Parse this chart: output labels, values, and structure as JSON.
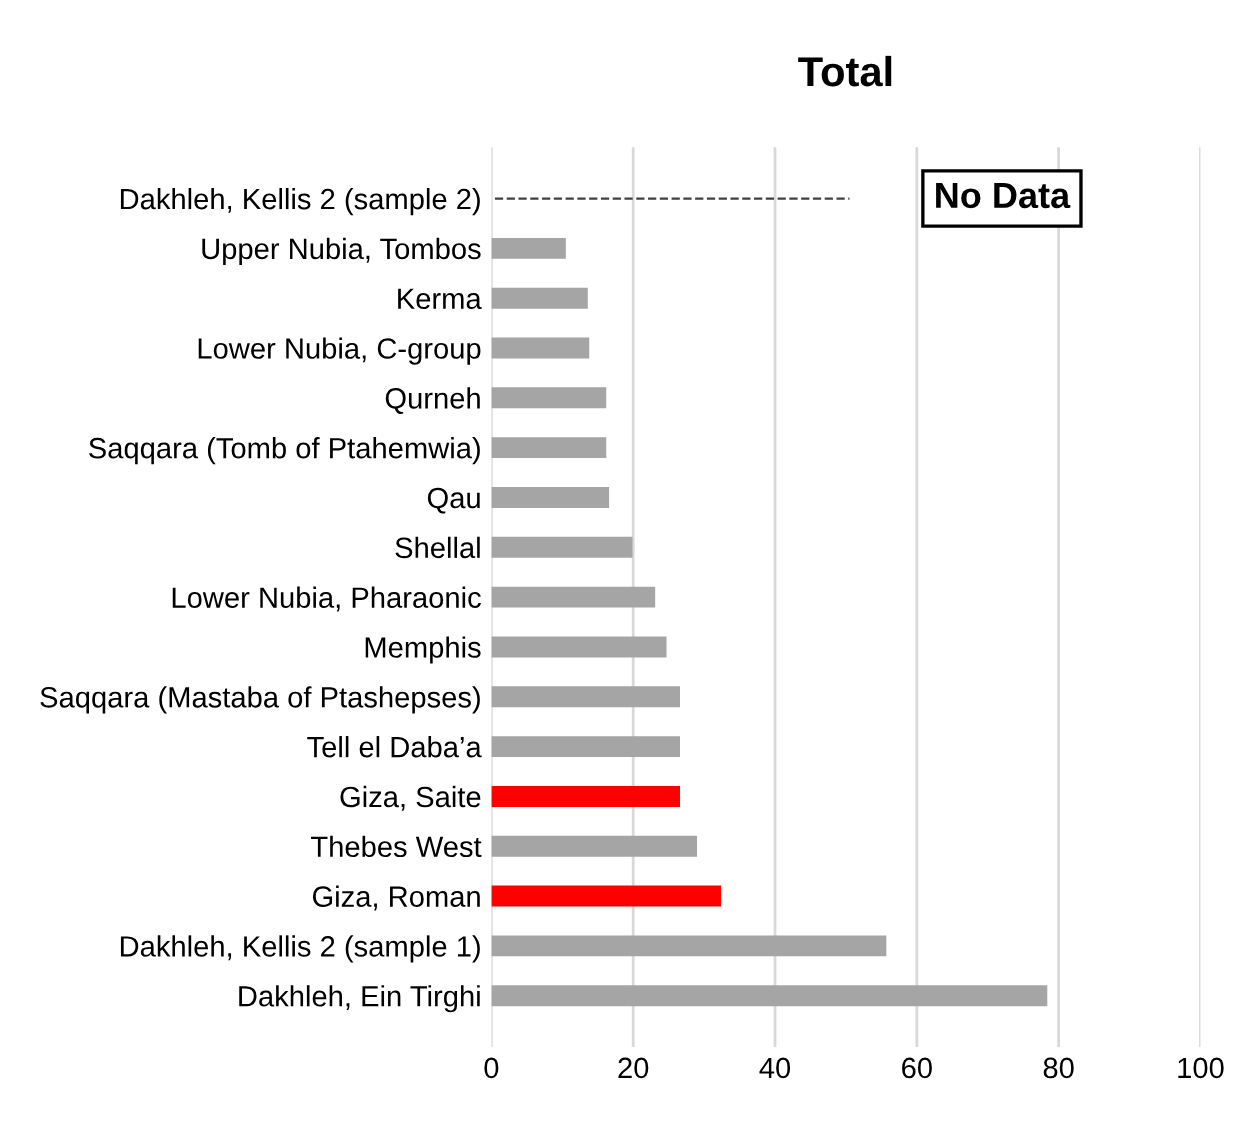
{
  "chart_data": {
    "type": "bar",
    "orientation": "horizontal",
    "title": "Total",
    "categories": [
      "Dakhleh, Kellis 2 (sample 2)",
      "Upper Nubia, Tombos",
      "Kerma",
      "Lower Nubia, C-group",
      "Qurneh",
      "Saqqara (Tomb of Ptahemwia)",
      "Qau",
      "Shellal",
      "Lower Nubia, Pharaonic",
      "Memphis",
      "Saqqara (Mastaba of Ptashepses)",
      "Tell el Daba’a",
      "Giza, Saite",
      "Thebes West",
      "Giza, Roman",
      "Dakhleh, Kellis 2 (sample 1)",
      "Dakhleh, Ein Tirghi"
    ],
    "values": [
      null,
      10.5,
      13.6,
      13.8,
      16.2,
      16.2,
      16.6,
      19.9,
      23.1,
      24.7,
      26.6,
      26.6,
      26.6,
      29.0,
      32.4,
      55.7,
      78.4
    ],
    "colors": [
      "#a5a5a5",
      "#a5a5a5",
      "#a5a5a5",
      "#a5a5a5",
      "#a5a5a5",
      "#a5a5a5",
      "#a5a5a5",
      "#a5a5a5",
      "#a5a5a5",
      "#a5a5a5",
      "#a5a5a5",
      "#a5a5a5",
      "#ff0000",
      "#a5a5a5",
      "#ff0000",
      "#a5a5a5",
      "#a5a5a5"
    ],
    "xlim": [
      0,
      100
    ],
    "xticks": [
      0,
      20,
      40,
      60,
      80,
      100
    ],
    "grid": "x",
    "ref_lines": [
      {
        "axis": "y",
        "value": "Dakhleh, Kellis 2 (sample 2)",
        "label": "No Data",
        "color": "#404040",
        "line_style": "dashed"
      }
    ]
  }
}
